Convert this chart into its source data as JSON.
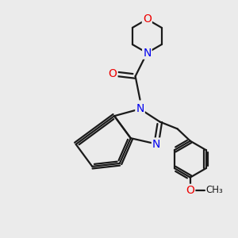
{
  "background_color": "#ebebeb",
  "bond_color": "#1a1a1a",
  "n_color": "#0000ee",
  "o_color": "#ee0000",
  "line_width": 1.6,
  "font_size_atom": 10,
  "fig_width": 3.0,
  "fig_height": 3.0,
  "dpi": 100,
  "xlim": [
    0,
    10
  ],
  "ylim": [
    0,
    10
  ]
}
